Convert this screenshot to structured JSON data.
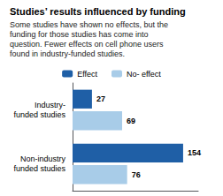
{
  "chart_data": {
    "type": "bar",
    "orientation": "horizontal",
    "title": "Studies’ results influenced by funding",
    "subtitle": "Some studies have shown no effects, but the\nfunding for those studies has come into\nquestion. Fewer effects on cell phone users\nfound in industry-funded studies.",
    "categories": [
      "Industry-\nfunded studies",
      "Non-industry\nfunded studies"
    ],
    "series": [
      {
        "name": "Effect",
        "color": "#1f5fa6",
        "values": [
          27,
          154
        ]
      },
      {
        "name": "No- effect",
        "color": "#a8cce8",
        "values": [
          69,
          76
        ]
      }
    ],
    "xlim": [
      0,
      175
    ],
    "data_labels": true,
    "legend": "top",
    "grid": false,
    "tick_labels": "y"
  }
}
